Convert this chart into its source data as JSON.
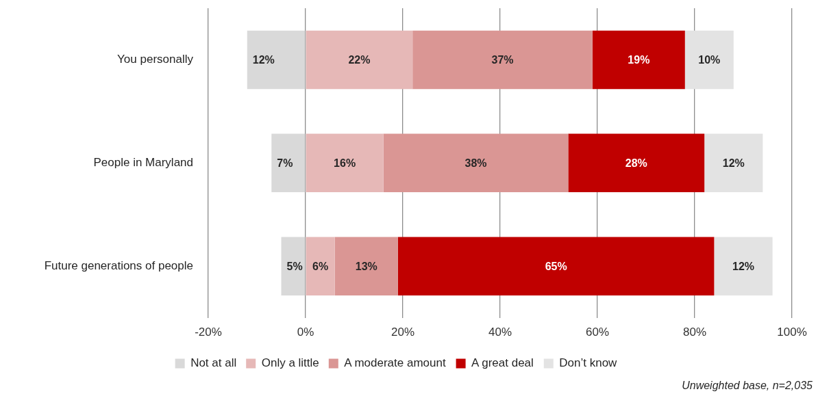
{
  "chart_data": {
    "type": "bar",
    "orientation": "horizontal",
    "stacked": true,
    "categories": [
      "You personally",
      "People in Maryland",
      "Future generations of people"
    ],
    "series": [
      {
        "name": "Not at all",
        "color": "#d9d9d9",
        "values": [
          -12,
          -7,
          -5
        ]
      },
      {
        "name": "Only a little",
        "color": "#e6b8b7",
        "values": [
          22,
          16,
          6
        ],
        "value_labels": [
          "22%",
          "16%",
          "6%"
        ]
      },
      {
        "name": "A moderate amount",
        "color": "#da9694",
        "values": [
          37,
          38,
          13
        ],
        "value_labels": [
          "37%",
          "38%",
          "13%"
        ]
      },
      {
        "name": "A great deal",
        "color": "#c00000",
        "values": [
          19,
          28,
          65
        ],
        "value_labels": [
          "19%",
          "28%",
          "65%"
        ]
      },
      {
        "name": "Don’t know",
        "color": "#e3e3e3",
        "values": [
          10,
          12,
          12
        ],
        "value_labels": [
          "10%",
          "12%",
          "12%"
        ]
      }
    ],
    "xlim": [
      -20,
      100
    ],
    "xticks": [
      {
        "value": -20,
        "label": "-20%"
      },
      {
        "value": 0,
        "label": "0%"
      },
      {
        "value": 20,
        "label": "20%"
      },
      {
        "value": 40,
        "label": "40%"
      },
      {
        "value": 60,
        "label": "60%"
      },
      {
        "value": 80,
        "label": "80%"
      },
      {
        "value": 100,
        "label": "100%"
      }
    ],
    "grid": "x",
    "legend": "bottom",
    "annotations": [
      {
        "text": "12%",
        "x": -12,
        "y": "You personally"
      },
      {
        "text": "7%",
        "x": -7,
        "y": "People in Maryland"
      },
      {
        "text": "5%",
        "x": -5,
        "y": "Future generations of people"
      },
      "Unweighted base, n=2,035"
    ]
  }
}
